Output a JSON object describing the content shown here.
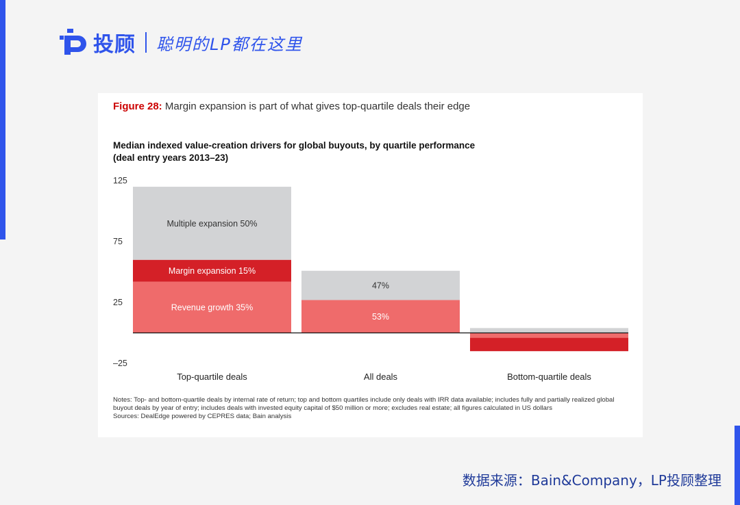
{
  "brand": {
    "name": "投顾",
    "slogan": "聪明的LP都在这里"
  },
  "figure": {
    "label": "Figure 28:",
    "caption": "Margin expansion is part of what gives top-quartile deals their edge"
  },
  "chart_data": {
    "type": "bar",
    "stacked": true,
    "title": "Median indexed value-creation drivers for global buyouts, by quartile performance",
    "subtitle": "(deal entry years 2013–23)",
    "categories": [
      "Top-quartile deals",
      "All deals",
      "Bottom-quartile deals"
    ],
    "y_ticks": [
      "125",
      "75",
      "25",
      "–25"
    ],
    "y_tick_values": [
      125,
      75,
      25,
      -25
    ],
    "ylim": [
      -25,
      125
    ],
    "grid": false,
    "series": [
      {
        "key": "revenue",
        "color": "#ef6b6b",
        "values": [
          42,
          27,
          -4
        ],
        "labels": [
          "Revenue growth 35%",
          "53%",
          ""
        ],
        "label_color": "#ffffff"
      },
      {
        "key": "margin",
        "color": "#d42027",
        "values": [
          18,
          0,
          -11
        ],
        "labels": [
          "Margin expansion 15%",
          "",
          ""
        ],
        "label_color": "#ffffff"
      },
      {
        "key": "multiple",
        "color": "#d2d3d5",
        "values": [
          60,
          24,
          4
        ],
        "labels": [
          "Multiple expansion 50%",
          "47%",
          ""
        ],
        "label_color": "#333333"
      }
    ]
  },
  "notes": "Notes: Top- and bottom-quartile deals by internal rate of return; top and bottom quartiles include only deals with IRR data available; includes fully and partially realized global buyout deals by year of entry; includes deals with invested equity capital of $50 million or more; excludes real estate; all figures calculated in US dollars",
  "sources": "Sources: DealEdge powered by CEPRES data; Bain analysis",
  "footer": {
    "source_credit": "数据来源：Bain&Company，LP投顾整理"
  },
  "colors": {
    "brand_blue": "#2f54eb",
    "figure_label_red": "#cc0000"
  }
}
